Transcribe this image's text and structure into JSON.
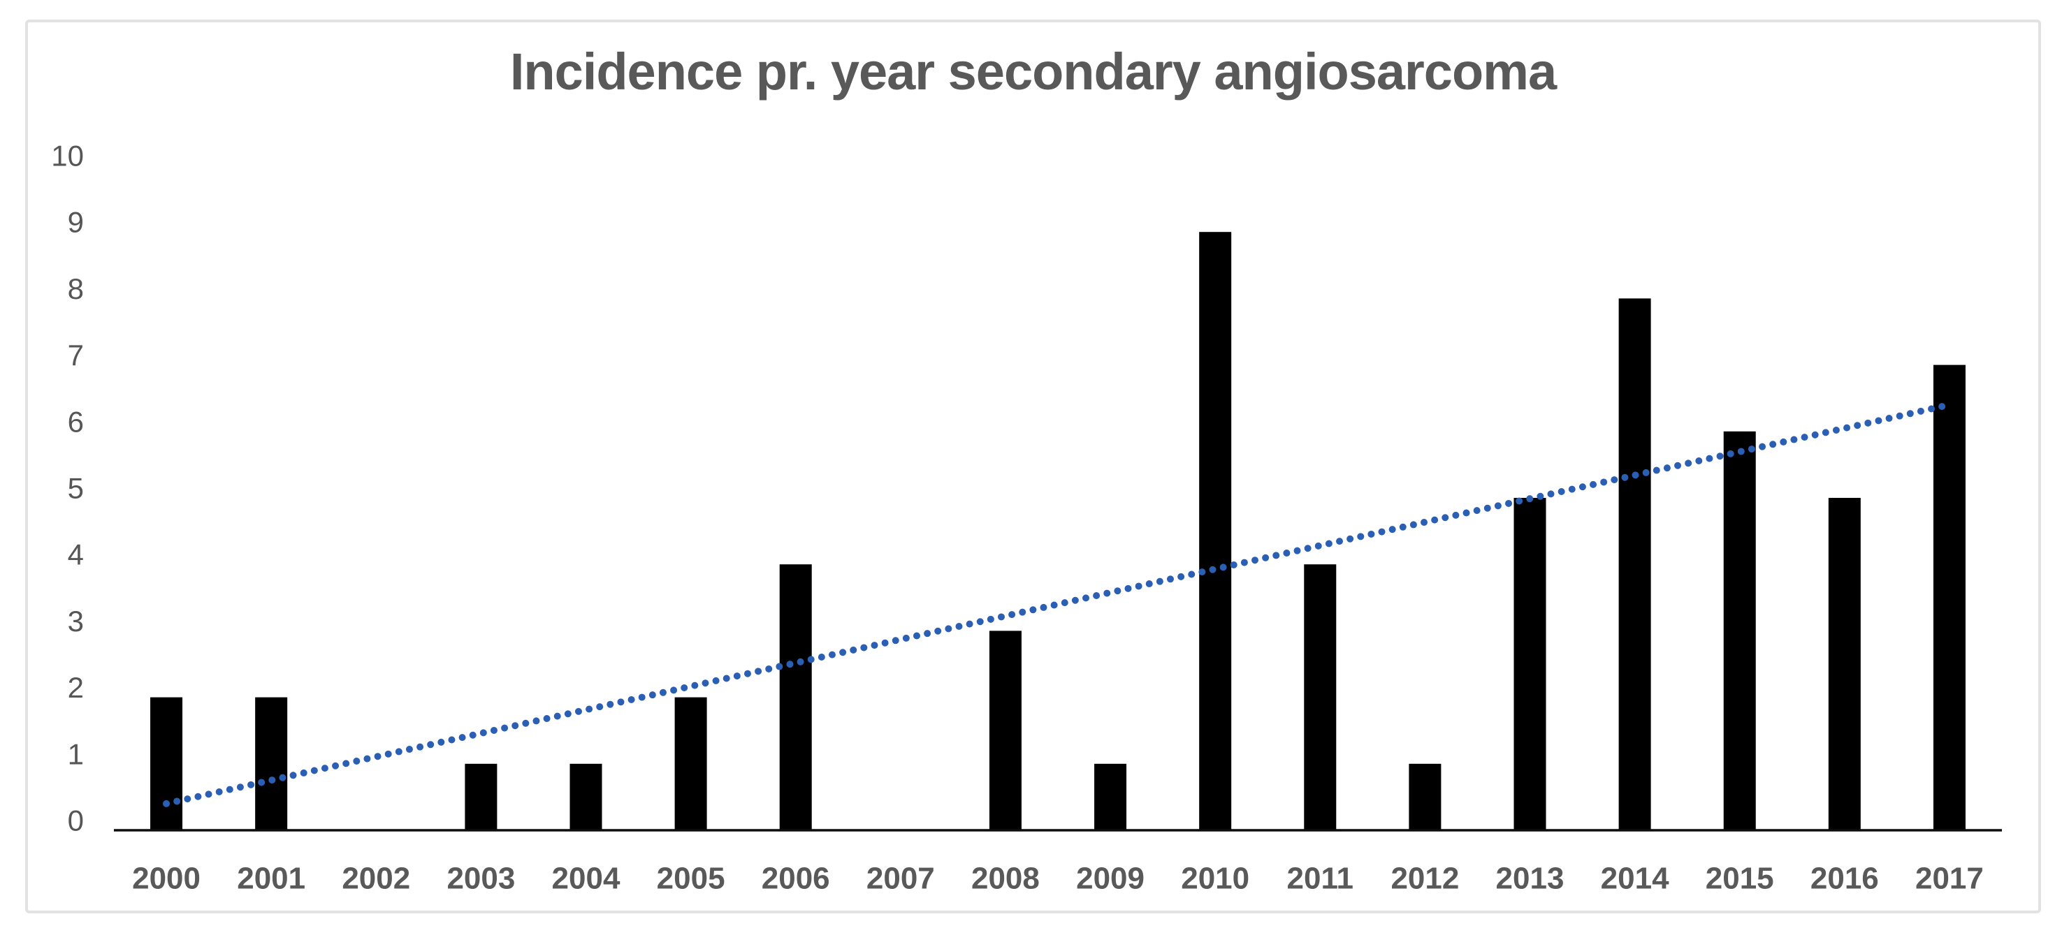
{
  "chart_data": {
    "type": "bar",
    "title": "Incidence pr. year secondary angiosarcoma",
    "categories": [
      "2000",
      "2001",
      "2002",
      "2003",
      "2004",
      "2005",
      "2006",
      "2007",
      "2008",
      "2009",
      "2010",
      "2011",
      "2012",
      "2013",
      "2014",
      "2015",
      "2016",
      "2017"
    ],
    "values": [
      2,
      2,
      0,
      1,
      1,
      2,
      4,
      0,
      3,
      1,
      9,
      4,
      1,
      5,
      8,
      6,
      5,
      7
    ],
    "series_name": "Incidence",
    "xlabel": "",
    "ylabel": "",
    "yticks": [
      0,
      1,
      2,
      3,
      4,
      5,
      6,
      7,
      8,
      9,
      10
    ],
    "ylim": [
      0,
      10
    ],
    "grid": false,
    "legend": "none",
    "bar_color": "#000000",
    "trendline": {
      "type": "linear",
      "style": "dotted",
      "color": "#2a5fb4",
      "start_value": 0.4,
      "end_value": 6.4
    }
  },
  "colors": {
    "title": "#595959",
    "y_tick_labels": "#565656",
    "x_tick_labels": "#595959",
    "axis_line": "#0d0d0d",
    "frame_border": "#e2e2e2",
    "background": "#ffffff"
  }
}
